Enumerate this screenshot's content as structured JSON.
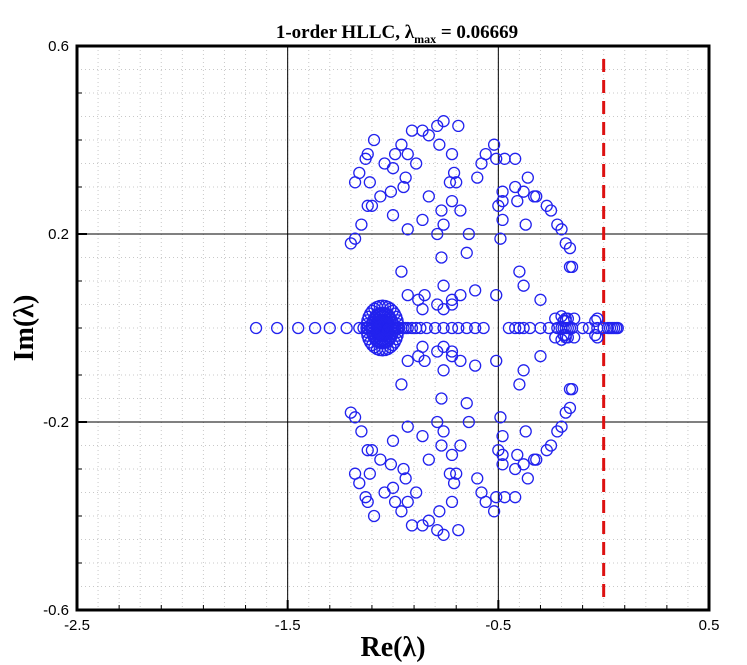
{
  "chart_data": {
    "type": "scatter",
    "title": {
      "prefix": "1-order HLLC,  ",
      "symbol": "λ",
      "subscript": "max",
      "suffix": " = 0.06669"
    },
    "xlabel": "Re(λ)",
    "ylabel": "Im(λ)",
    "xlim": [
      -2.5,
      0.5
    ],
    "ylim": [
      -0.6,
      0.6
    ],
    "xticks": [
      {
        "value": -2.5,
        "label": "-2.5"
      },
      {
        "value": -1.5,
        "label": "-1.5"
      },
      {
        "value": -0.5,
        "label": "-0.5"
      },
      {
        "value": 0.5,
        "label": "0.5"
      }
    ],
    "yticks": [
      {
        "value": 0.6,
        "label": "0.6"
      },
      {
        "value": 0.2,
        "label": "0.2"
      },
      {
        "value": -0.2,
        "label": "-0.2"
      },
      {
        "value": -0.6,
        "label": "-0.6"
      }
    ],
    "major_grid_x": [
      -1.5,
      -0.5
    ],
    "major_grid_y": [
      0.2,
      -0.2
    ],
    "minor_grid": true,
    "reference_line": {
      "x": 0.0,
      "color": "#dd1111",
      "style": "dashed"
    },
    "marker": {
      "shape": "open-circle",
      "color": "#2222ee"
    },
    "series": [
      {
        "upper_half": [
          [
            -0.52,
            0.39
          ],
          [
            -0.56,
            0.37
          ],
          [
            -0.58,
            0.35
          ],
          [
            -0.6,
            0.32
          ],
          [
            -0.69,
            0.43
          ],
          [
            -0.72,
            0.37
          ],
          [
            -0.71,
            0.33
          ],
          [
            -0.7,
            0.31
          ],
          [
            -0.83,
            0.41
          ],
          [
            -0.86,
            0.42
          ],
          [
            -0.91,
            0.42
          ],
          [
            -0.96,
            0.39
          ],
          [
            -0.79,
            0.43
          ],
          [
            -0.76,
            0.44
          ],
          [
            -0.78,
            0.39
          ],
          [
            -0.73,
            0.31
          ],
          [
            -0.99,
            0.37
          ],
          [
            -1.0,
            0.34
          ],
          [
            -1.09,
            0.4
          ],
          [
            -1.12,
            0.37
          ],
          [
            -1.13,
            0.36
          ],
          [
            -1.16,
            0.33
          ],
          [
            -1.18,
            0.31
          ],
          [
            -1.11,
            0.31
          ],
          [
            -1.04,
            0.35
          ],
          [
            -0.93,
            0.37
          ],
          [
            -0.94,
            0.32
          ],
          [
            -0.89,
            0.35
          ],
          [
            -1.12,
            0.26
          ],
          [
            -1.1,
            0.26
          ],
          [
            -1.06,
            0.28
          ],
          [
            -1.01,
            0.29
          ],
          [
            -0.95,
            0.3
          ],
          [
            -0.83,
            0.28
          ],
          [
            -0.86,
            0.23
          ],
          [
            -0.93,
            0.21
          ],
          [
            -1.0,
            0.24
          ],
          [
            -1.15,
            0.22
          ],
          [
            -1.18,
            0.19
          ],
          [
            -1.2,
            0.18
          ],
          [
            -0.77,
            0.25
          ],
          [
            -0.72,
            0.27
          ],
          [
            -0.68,
            0.25
          ],
          [
            -0.64,
            0.2
          ],
          [
            -0.65,
            0.16
          ],
          [
            -0.76,
            0.22
          ],
          [
            -0.79,
            0.2
          ],
          [
            -0.77,
            0.15
          ],
          [
            -0.51,
            0.36
          ],
          [
            -0.47,
            0.36
          ],
          [
            -0.42,
            0.36
          ],
          [
            -0.36,
            0.32
          ],
          [
            -0.38,
            0.29
          ],
          [
            -0.32,
            0.28
          ],
          [
            -0.27,
            0.26
          ],
          [
            -0.25,
            0.25
          ],
          [
            -0.22,
            0.22
          ],
          [
            -0.2,
            0.21
          ],
          [
            -0.18,
            0.18
          ],
          [
            -0.16,
            0.17
          ],
          [
            -0.15,
            0.13
          ],
          [
            -0.16,
            0.13
          ],
          [
            -0.33,
            0.28
          ],
          [
            -0.42,
            0.3
          ],
          [
            -0.41,
            0.27
          ],
          [
            -0.48,
            0.29
          ],
          [
            -0.48,
            0.27
          ],
          [
            -0.5,
            0.26
          ],
          [
            -0.48,
            0.23
          ],
          [
            -0.37,
            0.22
          ],
          [
            -0.49,
            0.19
          ],
          [
            -0.4,
            0.12
          ],
          [
            -0.38,
            0.09
          ],
          [
            -0.3,
            0.06
          ],
          [
            -0.51,
            0.07
          ],
          [
            -0.61,
            0.08
          ],
          [
            -0.68,
            0.07
          ],
          [
            -0.72,
            0.06
          ],
          [
            -0.76,
            0.09
          ],
          [
            -0.79,
            0.05
          ],
          [
            -0.85,
            0.07
          ],
          [
            -0.86,
            0.04
          ],
          [
            -0.96,
            0.12
          ],
          [
            -0.93,
            0.07
          ],
          [
            -0.88,
            0.06
          ],
          [
            -0.76,
            0.04
          ],
          [
            -0.72,
            0.05
          ],
          [
            -0.18,
            0.02
          ],
          [
            -0.23,
            0.02
          ],
          [
            -0.2,
            0.025
          ],
          [
            -0.19,
            0.015
          ],
          [
            -0.18,
            0.015
          ],
          [
            -0.17,
            0.02
          ],
          [
            -0.14,
            0.02
          ],
          [
            -0.03,
            0.02
          ],
          [
            -0.04,
            0.015
          ]
        ],
        "real_axis_x": [
          -1.65,
          -1.55,
          -1.45,
          -1.37,
          -1.3,
          -1.22,
          -1.16,
          -1.14,
          -1.12,
          -1.1,
          -1.08,
          -1.06,
          -1.05,
          -1.04,
          -1.03,
          -1.02,
          -1.01,
          -1.0,
          -0.99,
          -0.98,
          -0.97,
          -0.96,
          -0.95,
          -0.94,
          -0.93,
          -0.91,
          -0.89,
          -0.87,
          -0.84,
          -0.8,
          -0.76,
          -0.72,
          -0.69,
          -0.65,
          -0.61,
          -0.57,
          -0.45,
          -0.42,
          -0.4,
          -0.38,
          -0.35,
          -0.3,
          -0.26,
          -0.22,
          -0.2,
          -0.19,
          -0.18,
          -0.17,
          -0.16,
          -0.15,
          -0.1,
          -0.07,
          -0.03,
          0.0,
          0.02,
          0.03,
          0.04,
          0.05,
          0.06,
          0.067
        ],
        "cluster": {
          "center": [
            -1.05,
            0.0
          ],
          "rx": 0.08,
          "ry": 0.05
        }
      }
    ]
  }
}
